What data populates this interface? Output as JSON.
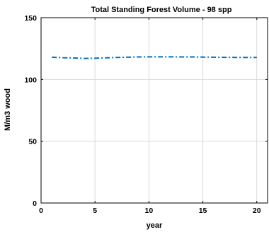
{
  "chart_data": {
    "type": "line",
    "title": "Total Standing Forest Volume - 98 spp",
    "xlabel": "year",
    "ylabel": "M/m3 wood",
    "xlim": [
      0,
      21
    ],
    "ylim": [
      0,
      150
    ],
    "xticks": [
      0,
      5,
      10,
      15,
      20
    ],
    "yticks": [
      0,
      50,
      100,
      150
    ],
    "grid": true,
    "line_style": "dash-dot",
    "color": "#0072BD",
    "x": [
      1,
      2,
      3,
      4,
      5,
      6,
      7,
      8,
      9,
      10,
      11,
      12,
      13,
      14,
      15,
      16,
      17,
      18,
      19,
      20
    ],
    "series": [
      {
        "values": [
          118,
          117.6,
          117.4,
          117,
          117.2,
          117.5,
          117.8,
          118,
          118.2,
          118.3,
          118.3,
          118.3,
          118.2,
          118.2,
          118.1,
          118,
          117.9,
          117.8,
          117.8,
          117.8
        ]
      }
    ]
  }
}
